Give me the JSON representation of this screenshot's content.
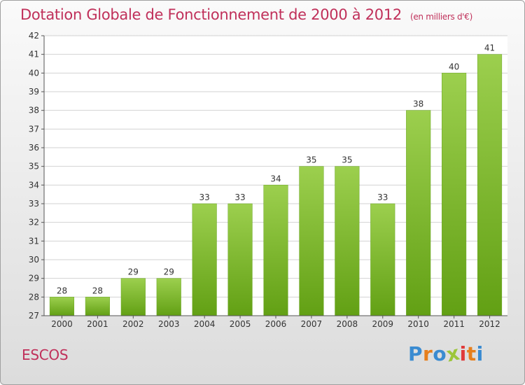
{
  "page": {
    "title": "Dotation Globale de Fonctionnement de 2000 à 2012",
    "unit_note": "(en milliers d'€)",
    "commune": "ESCOS",
    "logo_text": "Proxiti"
  },
  "colors": {
    "title": "#c0305a",
    "bar_top": "#9ccf4e",
    "bar_bottom": "#62a014",
    "grid": "#d2d2d2",
    "axis": "#555555",
    "logo": [
      "#3a8bd1",
      "#e77f1c",
      "#3a8bd1",
      "#9cc63a",
      "#e03a3a",
      "#e77f1c",
      "#3a8bd1"
    ]
  },
  "chart_data": {
    "type": "bar",
    "title": "Dotation Globale de Fonctionnement de 2000 à 2012",
    "subtitle": "(en milliers d'€)",
    "xlabel": "",
    "ylabel": "",
    "categories": [
      "2000",
      "2001",
      "2002",
      "2003",
      "2004",
      "2005",
      "2006",
      "2007",
      "2008",
      "2009",
      "2010",
      "2011",
      "2012"
    ],
    "values": [
      28,
      28,
      29,
      29,
      33,
      33,
      34,
      35,
      35,
      33,
      38,
      40,
      41
    ],
    "ylim": [
      27,
      42
    ],
    "yticks": [
      27,
      28,
      29,
      30,
      31,
      32,
      33,
      34,
      35,
      36,
      37,
      38,
      39,
      40,
      41,
      42
    ],
    "grid": true,
    "data_labels": true
  }
}
